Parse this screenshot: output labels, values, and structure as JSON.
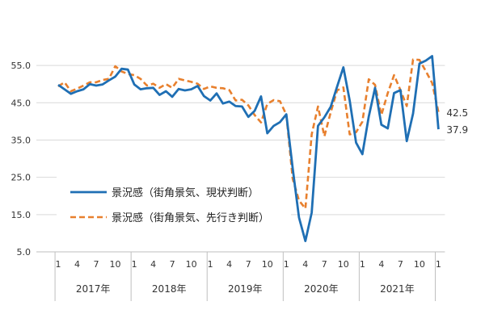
{
  "chart_data": {
    "type": "line",
    "ylim": [
      5,
      60
    ],
    "yticks": [
      "5.0",
      "15.0",
      "25.0",
      "35.0",
      "45.0",
      "55.0"
    ],
    "ytick_values": [
      5,
      15,
      25,
      35,
      45,
      55
    ],
    "month_ticks": [
      "1",
      "4",
      "7",
      "10",
      "1",
      "4",
      "7",
      "10",
      "1",
      "4",
      "7",
      "10",
      "1",
      "4",
      "7",
      "10",
      "1",
      "4",
      "7",
      "10",
      "1"
    ],
    "years": [
      "2017年",
      "2018年",
      "2019年",
      "2020年",
      "2021年"
    ],
    "x_start": "2017-01",
    "x_end": "2022-01",
    "legend_position": "center-left",
    "series": [
      {
        "name": "景況感（街角景気、現状判断）",
        "color": "#1f6fb4",
        "style": "solid",
        "end_label": "37.9",
        "values": [
          49.8,
          48.6,
          47.4,
          48.1,
          48.6,
          50.0,
          49.6,
          49.9,
          51.0,
          52.0,
          54.1,
          53.9,
          49.9,
          48.6,
          48.9,
          49.0,
          47.1,
          48.1,
          46.6,
          48.7,
          48.3,
          48.6,
          49.5,
          46.8,
          45.6,
          47.5,
          44.8,
          45.3,
          44.1,
          44.0,
          41.2,
          42.8,
          46.7,
          36.8,
          38.8,
          39.8,
          41.9,
          27.4,
          14.2,
          7.9,
          15.5,
          38.8,
          41.1,
          43.9,
          49.3,
          54.5,
          45.6,
          34.3,
          31.2,
          41.3,
          49.0,
          39.1,
          38.1,
          47.6,
          48.4,
          34.7,
          42.1,
          55.5,
          56.3,
          57.5,
          37.9
        ]
      },
      {
        "name": "景況感（街角景気、先行き判断）",
        "color": "#e8802e",
        "style": "dashed",
        "end_label": "42.5",
        "values": [
          49.4,
          50.5,
          48.1,
          48.8,
          49.6,
          50.5,
          50.5,
          51.1,
          51.4,
          54.8,
          53.4,
          52.7,
          52.4,
          51.4,
          49.6,
          50.1,
          49.0,
          50.0,
          49.0,
          51.4,
          51.0,
          50.6,
          50.1,
          48.7,
          49.4,
          49.0,
          48.9,
          48.4,
          45.6,
          45.8,
          44.3,
          41.7,
          39.7,
          44.7,
          45.7,
          45.4,
          41.8,
          24.6,
          18.8,
          16.6,
          36.5,
          44.0,
          36.0,
          42.4,
          48.3,
          49.1,
          36.5,
          37.1,
          39.9,
          51.3,
          49.8,
          41.7,
          47.6,
          52.4,
          48.4,
          44.1,
          56.6,
          56.5,
          53.5,
          50.3,
          42.5
        ]
      }
    ]
  }
}
